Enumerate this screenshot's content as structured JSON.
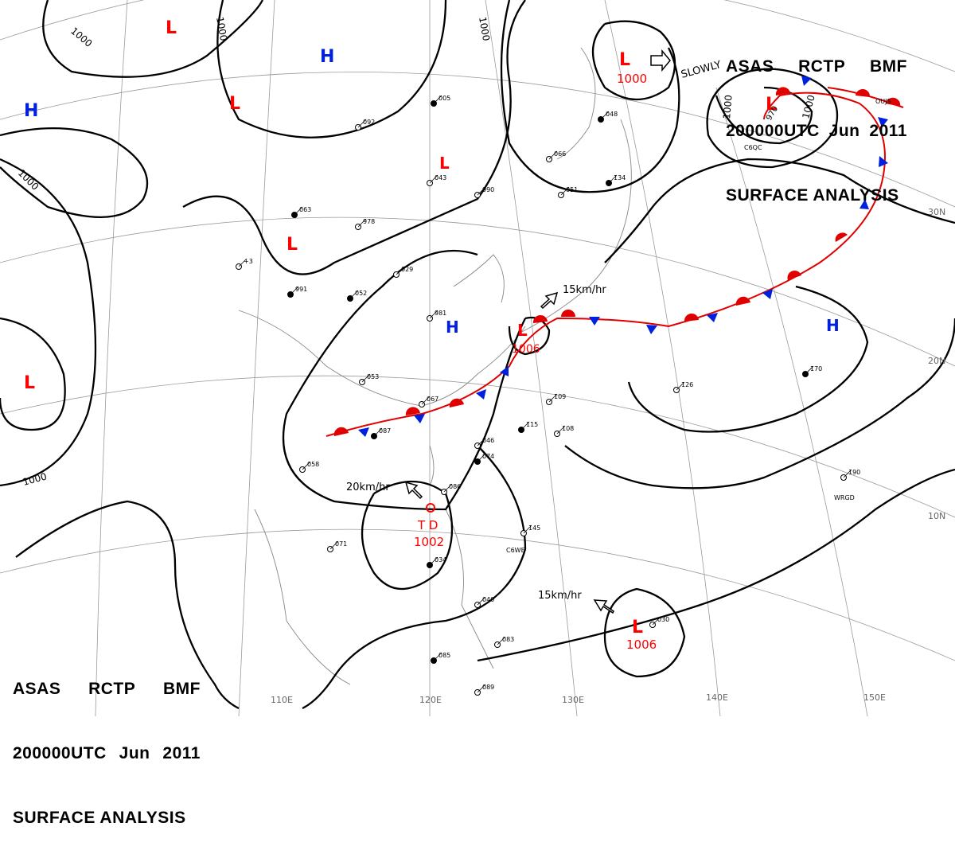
{
  "header": {
    "line1": [
      "ASAS",
      "RCTP",
      "BMF"
    ],
    "line2": [
      "200000UTC",
      "Jun",
      "2011"
    ],
    "line3": "SURFACE ANALYSIS"
  },
  "colors": {
    "isobar": "#000000",
    "warm_front": "#e00000",
    "cold_front": "#0020e0",
    "low_symbol": "#ff0000",
    "high_symbol": "#0020e0",
    "grid": "#9a9a9a",
    "coast": "#888888"
  },
  "isobar_labels": [
    "1000",
    "1000",
    "1000",
    "1000",
    "1000",
    "1000",
    "1000"
  ],
  "pressure_centers": [
    {
      "type": "L",
      "value": ""
    },
    {
      "type": "L",
      "value": ""
    },
    {
      "type": "L",
      "value": ""
    },
    {
      "type": "L",
      "value": ""
    },
    {
      "type": "L",
      "value": "1000"
    },
    {
      "type": "L",
      "value": "970"
    },
    {
      "type": "L",
      "value": ""
    },
    {
      "type": "L",
      "value": ""
    },
    {
      "type": "L",
      "value": "1006"
    },
    {
      "type": "L",
      "value": "1006"
    },
    {
      "type": "H",
      "value": ""
    },
    {
      "type": "H",
      "value": ""
    },
    {
      "type": "H",
      "value": ""
    },
    {
      "type": "H",
      "value": ""
    }
  ],
  "tropical_depression": {
    "label": "T D",
    "pressure": "1002"
  },
  "movement_labels": [
    "SLOWLY",
    "15km/hr",
    "20km/hr",
    "15km/hr"
  ],
  "longitude_labels": [
    "110E",
    "120E",
    "130E",
    "140E",
    "150E"
  ],
  "latitude_labels": [
    "30N",
    "20N",
    "10N"
  ],
  "ship_ids": [
    "C6WE",
    "WRGD",
    "C6QC",
    "OUJS"
  ],
  "station_samples": [
    "005",
    "+3",
    "029",
    "052",
    "053",
    "067",
    "087",
    "058",
    "046",
    "074",
    "086",
    "071",
    "034",
    "040",
    "083",
    "085",
    "089",
    "109",
    "115",
    "108",
    "126",
    "170",
    "190",
    "145",
    "134",
    "066",
    "051",
    "048",
    "092",
    "043",
    "063",
    "978",
    "990",
    "991",
    "981",
    "030",
    "085"
  ]
}
